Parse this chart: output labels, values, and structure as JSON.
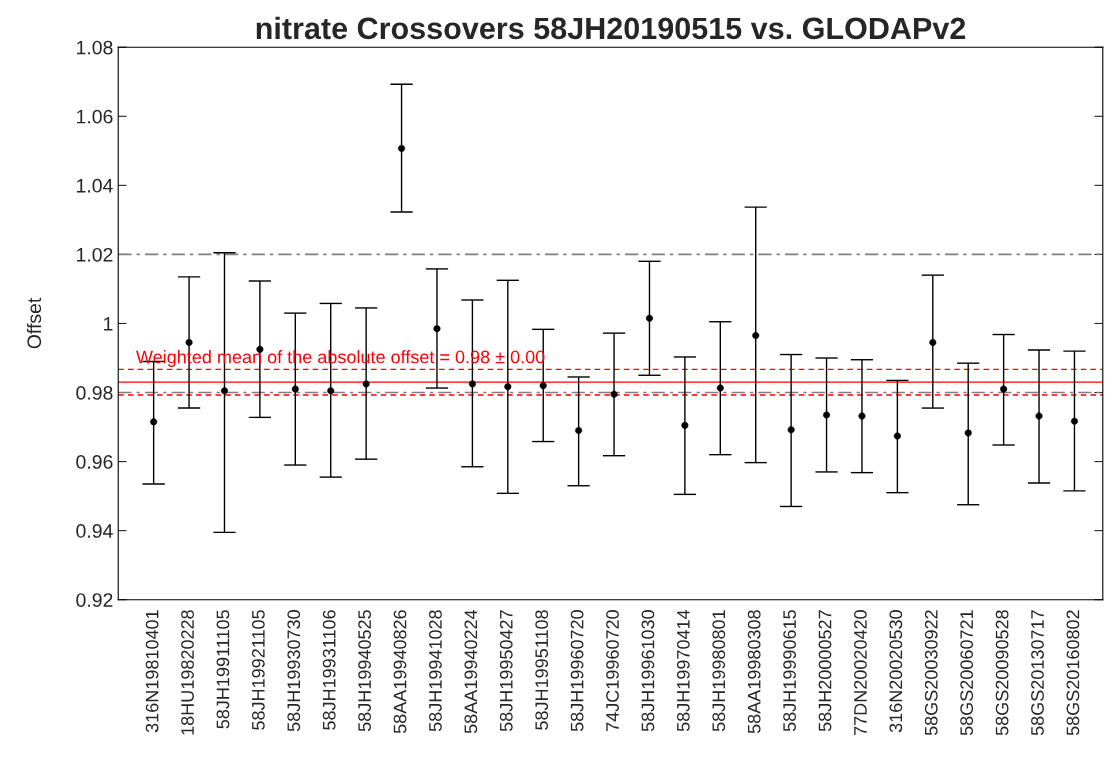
{
  "chart_data": {
    "type": "scatter",
    "title": "nitrate Crossovers 58JH20190515 vs. GLODAPv2",
    "ylabel": "Offset",
    "categories": [
      "316N19810401",
      "18HU19820228",
      "58JH19911105",
      "58JH19921105",
      "58JH19930730",
      "58JH19931106",
      "58JH19940525",
      "58AA19940826",
      "58JH19941028",
      "58AA19940224",
      "58JH19950427",
      "58JH19951108",
      "58JH19960720",
      "74JC19960720",
      "58JH19961030",
      "58JH19970414",
      "58JH19980801",
      "58AA19980308",
      "58JH19990615",
      "58JH20000527",
      "77DN20020420",
      "316N20020530",
      "58GS20030922",
      "58GS20060721",
      "58GS20090528",
      "58GS20130717",
      "58GS20160802"
    ],
    "series": [
      {
        "color": "#000000",
        "values": [
          0.9715,
          0.9945,
          0.9805,
          0.9925,
          0.981,
          0.9805,
          0.9825,
          1.0507,
          0.9985,
          0.9825,
          0.9817,
          0.982,
          0.969,
          0.9795,
          1.0015,
          0.9705,
          0.9813,
          0.9965,
          0.9692,
          0.9735,
          0.9732,
          0.9674,
          0.9945,
          0.9683,
          0.981,
          0.9732,
          0.9717
        ],
        "errors": [
          [
            0.9535,
            0.989
          ],
          [
            0.9755,
            1.0135
          ],
          [
            0.9395,
            1.0205
          ],
          [
            0.9728,
            1.0123
          ],
          [
            0.959,
            1.003
          ],
          [
            0.9555,
            1.0058
          ],
          [
            0.9607,
            1.0045
          ],
          [
            1.0323,
            1.0693
          ],
          [
            0.9813,
            1.0158
          ],
          [
            0.9585,
            1.0068
          ],
          [
            0.9508,
            1.0125
          ],
          [
            0.9658,
            0.9983
          ],
          [
            0.953,
            0.9845
          ],
          [
            0.9617,
            0.9972
          ],
          [
            0.985,
            1.018
          ],
          [
            0.9505,
            0.9903
          ],
          [
            0.962,
            1.0005
          ],
          [
            0.9597,
            1.0337
          ],
          [
            0.947,
            0.991
          ],
          [
            0.957,
            0.99
          ],
          [
            0.9568,
            0.9895
          ],
          [
            0.951,
            0.9835
          ],
          [
            0.9755,
            1.014
          ],
          [
            0.9475,
            0.9885
          ],
          [
            0.9648,
            0.9968
          ],
          [
            0.9538,
            0.9923
          ],
          [
            0.9515,
            0.992
          ]
        ]
      }
    ],
    "marker": "circle",
    "ylim": [
      0.92,
      1.08
    ],
    "yticks": [
      0.92,
      0.94,
      0.96,
      0.98,
      1,
      1.02,
      1.04,
      1.06,
      1.08
    ],
    "ref_lines": [
      {
        "axis": "y",
        "value": 1.02,
        "color": "#808080",
        "line_style": "dashdot"
      },
      {
        "axis": "y",
        "value": 0.98,
        "color": "#808080",
        "line_style": "dashdot"
      },
      {
        "axis": "y",
        "value": 0.983,
        "color": "#ff0000",
        "line_style": "solid",
        "label": "Weighted mean of the absolute offset = 0.98 ± 0.00"
      },
      {
        "axis": "y",
        "value": 0.9867,
        "color": "#ff0000",
        "line_style": "dashed"
      },
      {
        "axis": "y",
        "value": 0.9793,
        "color": "#ff0000",
        "line_style": "dashed"
      }
    ],
    "grid": false
  }
}
